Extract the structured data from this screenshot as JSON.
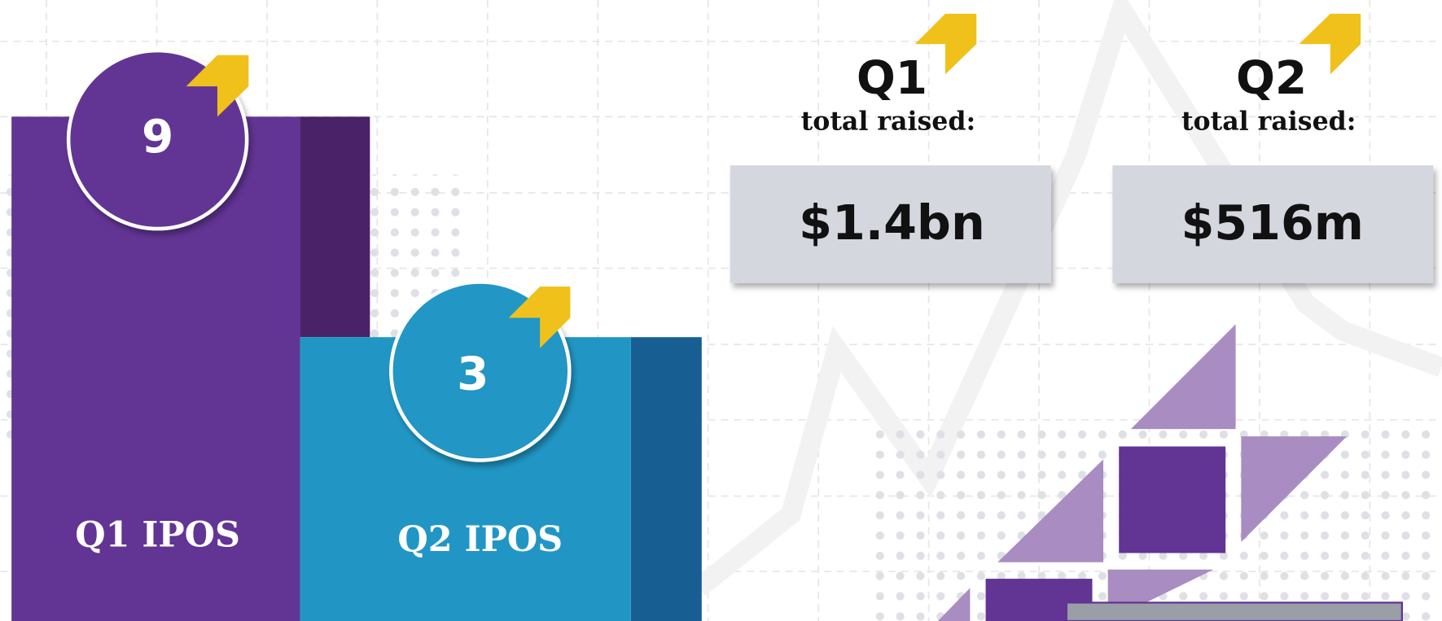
{
  "panels": [
    {
      "count": 9,
      "label": "Q1 IPOS"
    },
    {
      "count": 3,
      "label": "Q2 IPOS"
    }
  ],
  "totals": [
    {
      "quarter": "Q1",
      "caption": "total raised:",
      "amount": "$1.4bn"
    },
    {
      "quarter": "Q2",
      "caption": "total raised:",
      "amount": "$516m"
    }
  ]
}
